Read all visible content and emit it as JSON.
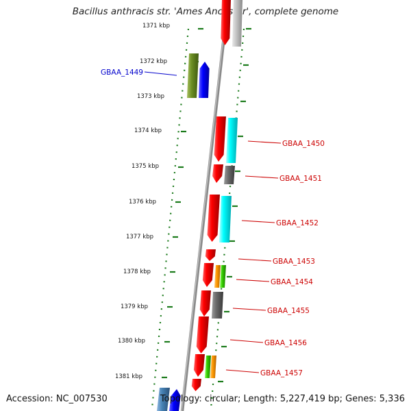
{
  "title": "Bacillus anthracis str. 'Ames Ancestor', complete genome",
  "footer": {
    "accession": "Accession: NC_007530",
    "topology": "Topology: circular; Length: 5,227,419 bp; Genes: 5,336"
  },
  "colors": {
    "backbone": "#8a8a8a",
    "tick": "#1a7a1a",
    "label_right": "#cc0000",
    "label_left": "#0000cc"
  },
  "ticks": [
    {
      "label": "1371 kbp"
    },
    {
      "label": "1372 kbp"
    },
    {
      "label": "1373 kbp"
    },
    {
      "label": "1374 kbp"
    },
    {
      "label": "1375 kbp"
    },
    {
      "label": "1376 kbp"
    },
    {
      "label": "1377 kbp"
    },
    {
      "label": "1378 kbp"
    },
    {
      "label": "1379 kbp"
    },
    {
      "label": "1380 kbp"
    },
    {
      "label": "1381 kbp"
    }
  ],
  "genes": [
    {
      "name": "GBAA_1449",
      "side": "left"
    },
    {
      "name": "GBAA_1450",
      "side": "right"
    },
    {
      "name": "GBAA_1451",
      "side": "right"
    },
    {
      "name": "GBAA_1452",
      "side": "right"
    },
    {
      "name": "GBAA_1453",
      "side": "right"
    },
    {
      "name": "GBAA_1454",
      "side": "right"
    },
    {
      "name": "GBAA_1455",
      "side": "right"
    },
    {
      "name": "GBAA_1456",
      "side": "right"
    },
    {
      "name": "GBAA_1457",
      "side": "right"
    }
  ]
}
